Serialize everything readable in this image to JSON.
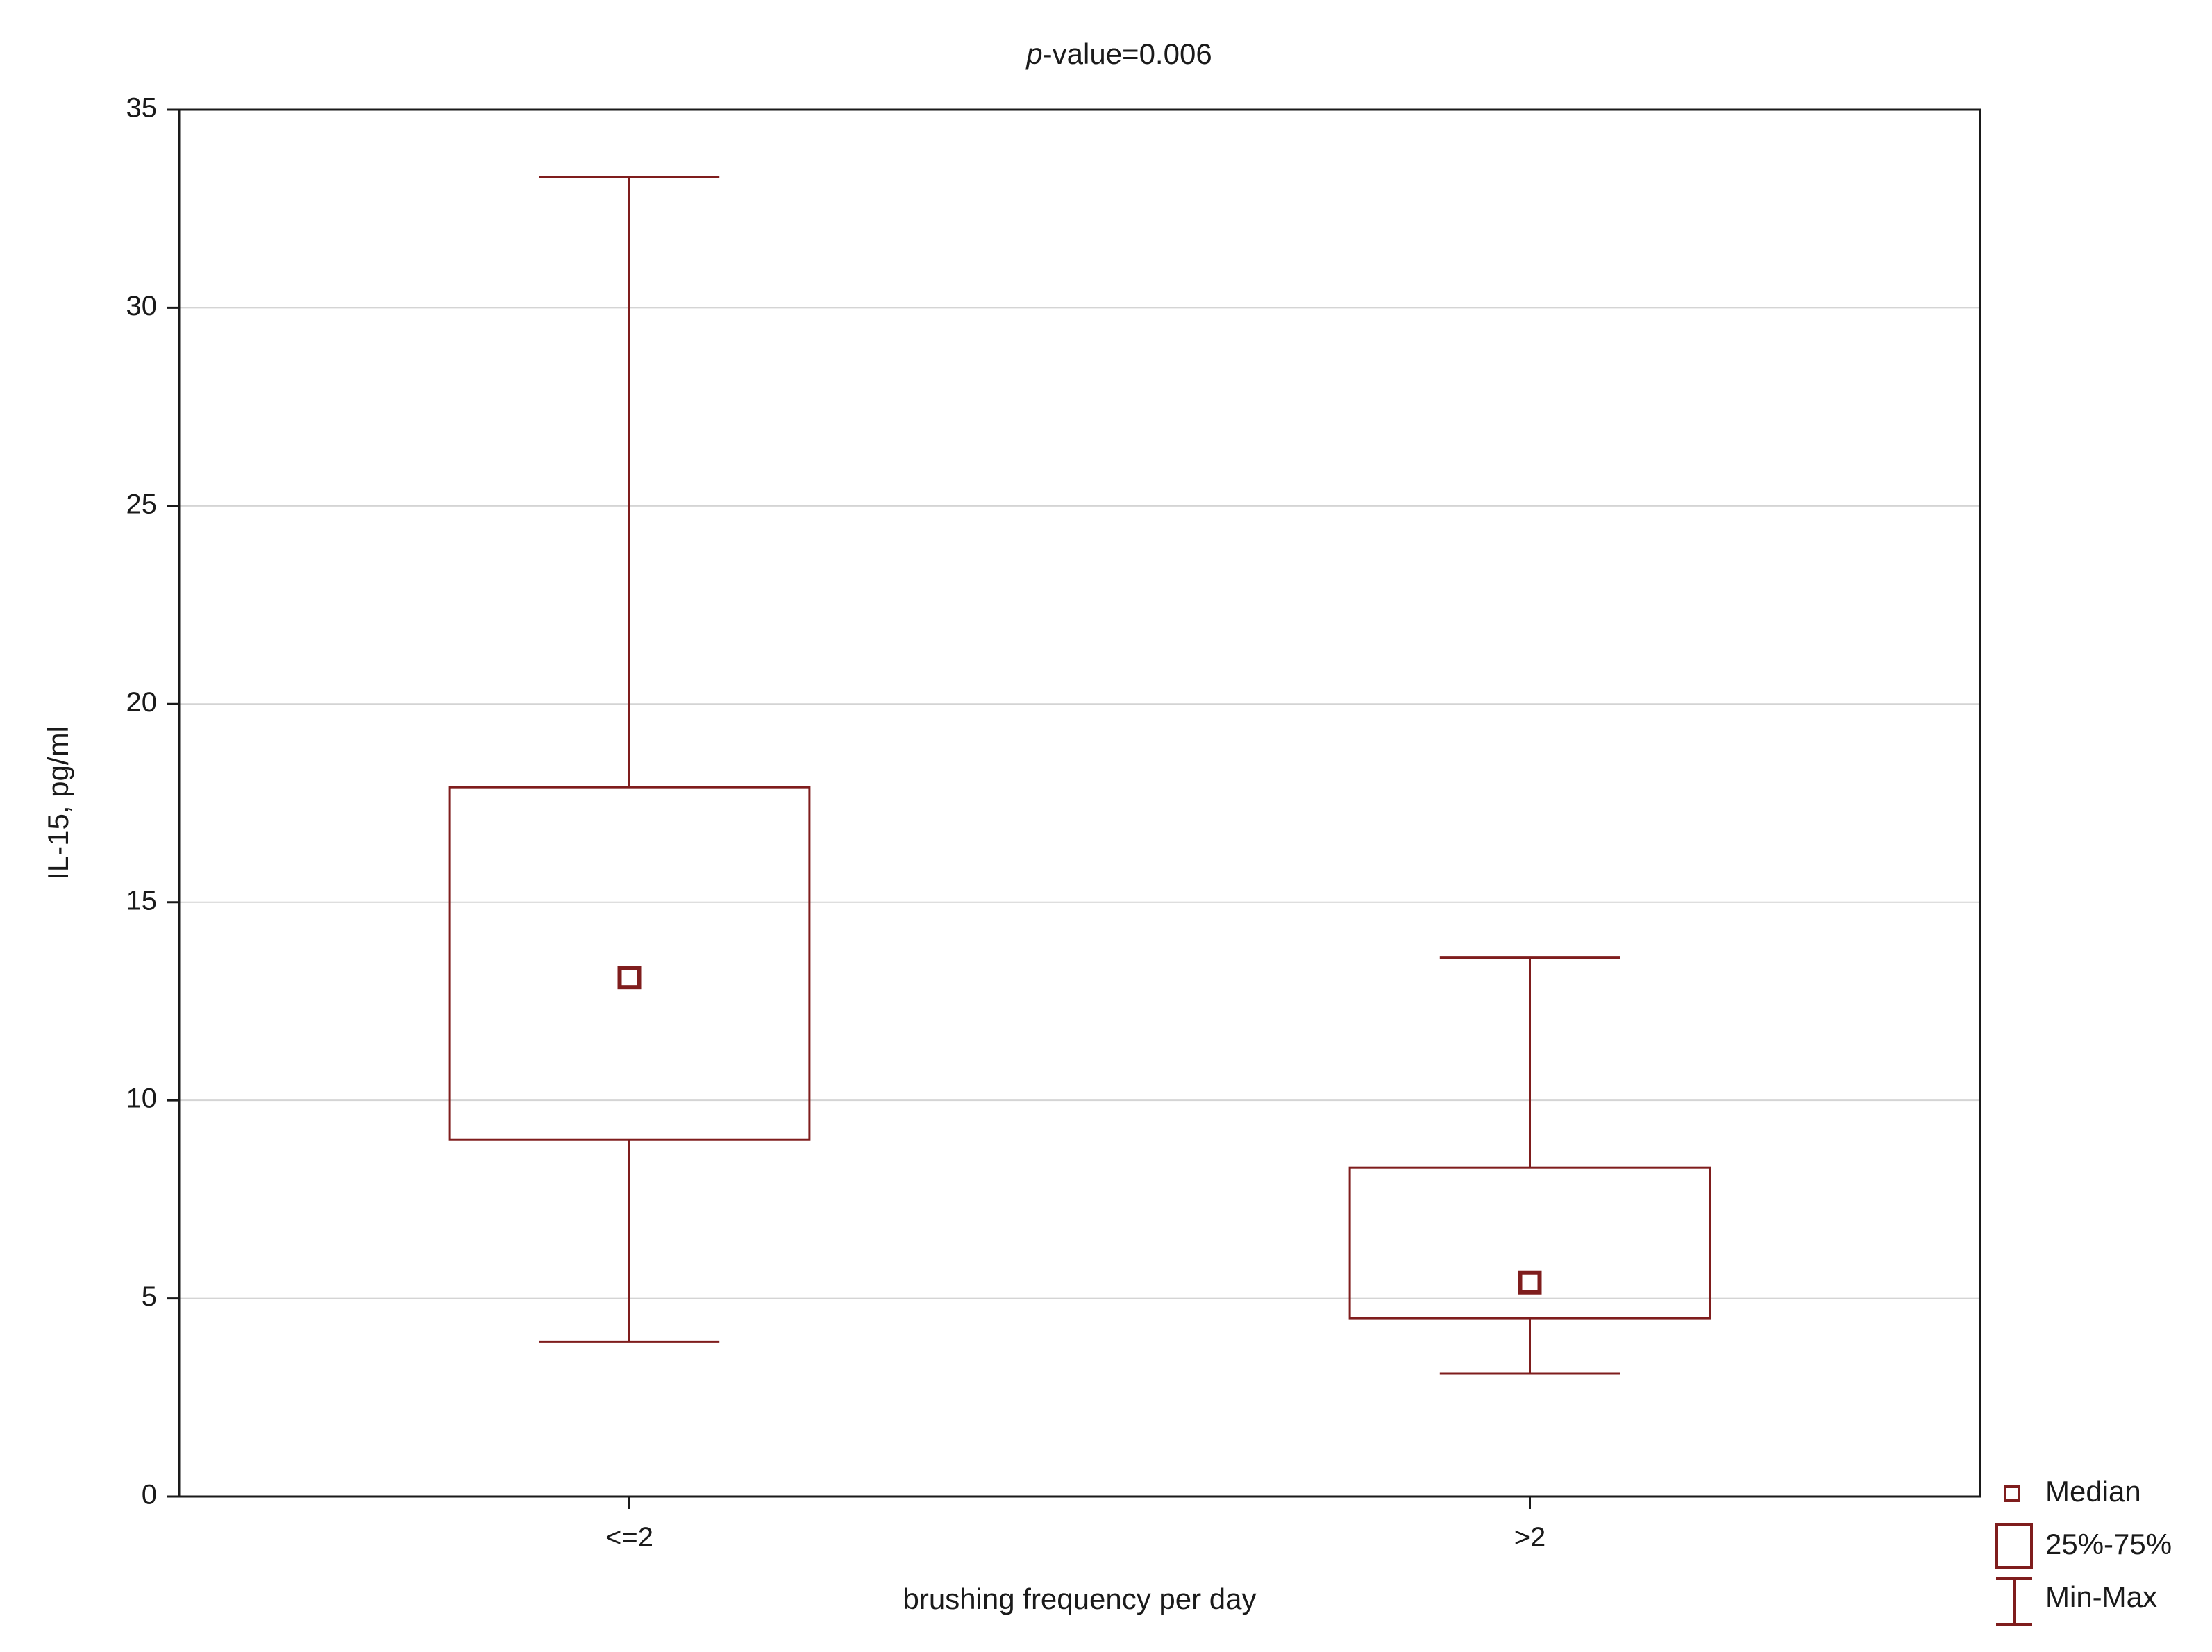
{
  "chart_data": {
    "type": "box",
    "title_prefix": "p",
    "title_suffix": "-value=0.006",
    "xlabel": "brushing frequency per day",
    "ylabel": "IL-15, pg/ml",
    "ylim": [
      0,
      35
    ],
    "yticks": [
      0,
      5,
      10,
      15,
      20,
      25,
      30,
      35
    ],
    "grid": true,
    "categories": [
      "<=2",
      ">2"
    ],
    "boxes": [
      {
        "category": "<=2",
        "min": 3.9,
        "q1": 9.0,
        "median": 13.1,
        "q3": 17.9,
        "max": 33.3
      },
      {
        "category": ">2",
        "min": 3.1,
        "q1": 4.5,
        "median": 5.4,
        "q3": 8.3,
        "max": 13.6
      }
    ],
    "color": "#7f1d1d",
    "legend": {
      "placement": "bottom-right",
      "items": [
        {
          "symbol": "median-marker",
          "label": "Median"
        },
        {
          "symbol": "box",
          "label": "25%-75%"
        },
        {
          "symbol": "whisker",
          "label": "Min-Max"
        }
      ]
    }
  }
}
